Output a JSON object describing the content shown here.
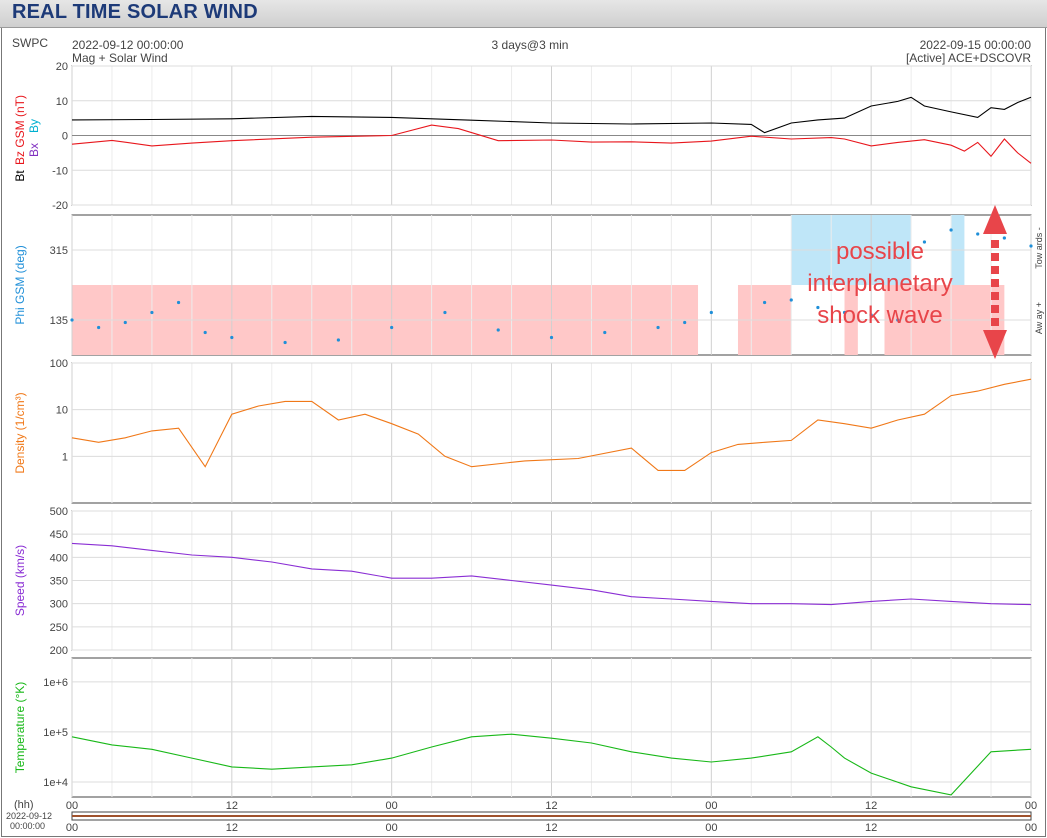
{
  "page": {
    "title": "REAL TIME SOLAR WIND",
    "agency": "SWPC",
    "start_time": "2022-09-12 00:00:00",
    "end_time": "2022-09-15 00:00:00",
    "span": "3 days@3 min",
    "source": "Mag + Solar Wind",
    "spacecraft": "[Active] ACE+DSCOVR"
  },
  "annotation": {
    "lines": [
      "possible",
      "interplanetary",
      "shock wave"
    ],
    "color": "#e8454a"
  },
  "colors": {
    "bt": "#000000",
    "bz": "#e8161c",
    "by": "#00b0d0",
    "bx": "#8030c0",
    "phi": "#1f8fd8",
    "away_fill": "#ffc8c8",
    "toward_fill": "#bfe6f8",
    "density": "#f07818",
    "speed": "#8a2ed4",
    "temperature": "#18b818"
  },
  "chart_data": [
    {
      "id": "mag",
      "type": "line",
      "ylabel_parts": [
        "Bt",
        "Bz GSM (nT)",
        "Bx",
        "By"
      ],
      "ylim": [
        -20,
        20
      ],
      "yticks": [
        -20,
        -10,
        0,
        10,
        20
      ],
      "grid": true,
      "x_unit": "hours since 2022-09-12 00:00",
      "series": [
        {
          "name": "Bt",
          "color": "#000000",
          "points": [
            [
              0,
              4.5
            ],
            [
              6,
              4.6
            ],
            [
              12,
              4.8
            ],
            [
              18,
              5.5
            ],
            [
              24,
              5.2
            ],
            [
              30,
              4.4
            ],
            [
              36,
              3.6
            ],
            [
              42,
              3.3
            ],
            [
              48,
              3.6
            ],
            [
              51,
              3.2
            ],
            [
              52,
              0.8
            ],
            [
              54,
              3.6
            ],
            [
              56,
              4.5
            ],
            [
              58,
              5.0
            ],
            [
              60,
              8.5
            ],
            [
              62,
              9.8
            ],
            [
              63,
              11
            ],
            [
              64,
              8.5
            ],
            [
              66,
              6.8
            ],
            [
              68,
              5.2
            ],
            [
              69,
              8.0
            ],
            [
              70,
              7.5
            ],
            [
              71,
              9.5
            ],
            [
              72,
              11
            ],
            [
              72.5,
              12.5
            ],
            [
              73,
              14.5
            ],
            [
              74,
              7
            ],
            [
              75,
              9
            ],
            [
              76,
              13
            ],
            [
              77,
              15
            ],
            [
              78,
              15.5
            ]
          ]
        },
        {
          "name": "Bz",
          "color": "#e8161c",
          "points": [
            [
              0,
              -2.5
            ],
            [
              3,
              -1.4
            ],
            [
              6,
              -3.0
            ],
            [
              9,
              -2.2
            ],
            [
              12,
              -1.5
            ],
            [
              18,
              -0.5
            ],
            [
              24,
              0
            ],
            [
              27,
              3.0
            ],
            [
              29,
              2.0
            ],
            [
              32,
              -1.5
            ],
            [
              36,
              -1.3
            ],
            [
              39,
              -1.9
            ],
            [
              42,
              -1.8
            ],
            [
              45,
              -2.2
            ],
            [
              48,
              -1.6
            ],
            [
              51,
              -0.2
            ],
            [
              54,
              -1.0
            ],
            [
              57,
              -0.6
            ],
            [
              58,
              -1.0
            ],
            [
              60,
              -3.0
            ],
            [
              62,
              -2.0
            ],
            [
              64,
              -1.2
            ],
            [
              66,
              -2.8
            ],
            [
              67,
              -4.5
            ],
            [
              68,
              -2.0
            ],
            [
              69,
              -6
            ],
            [
              70,
              -1
            ],
            [
              71,
              -5
            ],
            [
              72,
              -8
            ],
            [
              72.5,
              -3
            ],
            [
              73,
              -9
            ],
            [
              74,
              -7
            ],
            [
              75,
              -12
            ],
            [
              76,
              -14
            ],
            [
              77,
              6
            ],
            [
              78,
              4.5
            ]
          ]
        }
      ]
    },
    {
      "id": "phi",
      "type": "scatter",
      "ylabel": "Phi GSM (deg)",
      "ylim": [
        45,
        360
      ],
      "yticks": [
        135,
        315
      ],
      "sector_labels": [
        "Tow ards -",
        "Aw ay +"
      ],
      "grid": true,
      "series": [
        {
          "name": "Phi",
          "color": "#1f8fd8",
          "points": [
            [
              0,
              135
            ],
            [
              2,
              120
            ],
            [
              4,
              130
            ],
            [
              6,
              150
            ],
            [
              8,
              170
            ],
            [
              10,
              110
            ],
            [
              12,
              100
            ],
            [
              16,
              90
            ],
            [
              20,
              95
            ],
            [
              24,
              120
            ],
            [
              28,
              150
            ],
            [
              32,
              115
            ],
            [
              36,
              100
            ],
            [
              40,
              110
            ],
            [
              44,
              120
            ],
            [
              46,
              130
            ],
            [
              48,
              150
            ],
            [
              52,
              170
            ],
            [
              54,
              175
            ],
            [
              56,
              160
            ],
            [
              58,
              150
            ],
            [
              60,
              145
            ],
            [
              62,
              135
            ],
            [
              64,
              315
            ],
            [
              66,
              330
            ],
            [
              68,
              325
            ],
            [
              70,
              320
            ],
            [
              72,
              310
            ],
            [
              74,
              305
            ],
            [
              76,
              315
            ],
            [
              78,
              320
            ]
          ]
        }
      ],
      "away_sectors": [
        [
          0,
          47
        ],
        [
          50,
          54
        ],
        [
          58,
          59
        ],
        [
          61,
          70
        ],
        [
          72,
          79
        ]
      ],
      "toward_sectors": [
        [
          54,
          63
        ],
        [
          66,
          67
        ],
        [
          73,
          74
        ]
      ]
    },
    {
      "id": "density",
      "type": "line",
      "ylabel": "Density (1/cm³)",
      "yscale": "log",
      "ylim": [
        0.1,
        100
      ],
      "yticks": [
        1,
        10,
        100
      ],
      "grid": true,
      "series": [
        {
          "name": "Density",
          "color": "#f07818",
          "points": [
            [
              0,
              2.5
            ],
            [
              2,
              2.0
            ],
            [
              4,
              2.5
            ],
            [
              6,
              3.5
            ],
            [
              8,
              4.0
            ],
            [
              10,
              0.6
            ],
            [
              12,
              8.0
            ],
            [
              14,
              12
            ],
            [
              16,
              15
            ],
            [
              18,
              15
            ],
            [
              20,
              6
            ],
            [
              22,
              8
            ],
            [
              24,
              5
            ],
            [
              26,
              3
            ],
            [
              28,
              1.0
            ],
            [
              30,
              0.6
            ],
            [
              34,
              0.8
            ],
            [
              38,
              0.9
            ],
            [
              42,
              1.5
            ],
            [
              44,
              0.5
            ],
            [
              46,
              0.5
            ],
            [
              48,
              1.2
            ],
            [
              50,
              1.8
            ],
            [
              52,
              2.0
            ],
            [
              54,
              2.2
            ],
            [
              56,
              6.0
            ],
            [
              58,
              5.0
            ],
            [
              60,
              4.0
            ],
            [
              62,
              6.0
            ],
            [
              64,
              8.0
            ],
            [
              66,
              20
            ],
            [
              68,
              25
            ],
            [
              70,
              35
            ],
            [
              72,
              45
            ],
            [
              74,
              55
            ],
            [
              76,
              50
            ],
            [
              78,
              60
            ],
            [
              79,
              60
            ],
            [
              80,
              10
            ]
          ]
        }
      ]
    },
    {
      "id": "speed",
      "type": "line",
      "ylabel": "Speed (km/s)",
      "ylim": [
        200,
        500
      ],
      "yticks": [
        200,
        250,
        300,
        350,
        400,
        450,
        500
      ],
      "grid": true,
      "series": [
        {
          "name": "Speed",
          "color": "#8a2ed4",
          "points": [
            [
              0,
              430
            ],
            [
              3,
              425
            ],
            [
              6,
              415
            ],
            [
              9,
              405
            ],
            [
              12,
              400
            ],
            [
              15,
              390
            ],
            [
              18,
              375
            ],
            [
              21,
              370
            ],
            [
              24,
              355
            ],
            [
              27,
              355
            ],
            [
              30,
              360
            ],
            [
              33,
              350
            ],
            [
              36,
              340
            ],
            [
              39,
              330
            ],
            [
              42,
              315
            ],
            [
              45,
              310
            ],
            [
              48,
              305
            ],
            [
              51,
              300
            ],
            [
              54,
              300
            ],
            [
              57,
              298
            ],
            [
              60,
              305
            ],
            [
              63,
              310
            ],
            [
              66,
              305
            ],
            [
              69,
              300
            ],
            [
              72,
              298
            ],
            [
              75,
              305
            ],
            [
              78,
              330
            ],
            [
              80,
              340
            ]
          ]
        }
      ]
    },
    {
      "id": "temperature",
      "type": "line",
      "ylabel": "Temperature (°K)",
      "yscale": "log",
      "ylim": [
        5000,
        3000000
      ],
      "yticks": [
        10000,
        100000,
        1000000
      ],
      "ytick_labels": [
        "1e+4",
        "1e+5",
        "1e+6"
      ],
      "grid": true,
      "series": [
        {
          "name": "Temperature",
          "color": "#18b818",
          "points": [
            [
              0,
              80000
            ],
            [
              3,
              55000
            ],
            [
              6,
              45000
            ],
            [
              9,
              30000
            ],
            [
              12,
              20000
            ],
            [
              15,
              18000
            ],
            [
              18,
              20000
            ],
            [
              21,
              22000
            ],
            [
              24,
              30000
            ],
            [
              27,
              50000
            ],
            [
              30,
              80000
            ],
            [
              33,
              90000
            ],
            [
              36,
              75000
            ],
            [
              39,
              60000
            ],
            [
              42,
              40000
            ],
            [
              45,
              30000
            ],
            [
              48,
              25000
            ],
            [
              51,
              30000
            ],
            [
              54,
              40000
            ],
            [
              56,
              80000
            ],
            [
              57,
              50000
            ],
            [
              58,
              30000
            ],
            [
              60,
              15000
            ],
            [
              63,
              8000
            ],
            [
              66,
              5500
            ],
            [
              69,
              40000
            ],
            [
              72,
              45000
            ],
            [
              75,
              40000
            ],
            [
              78,
              30000
            ],
            [
              80,
              20000
            ]
          ]
        }
      ]
    },
    {
      "id": "time_axis",
      "type": "line",
      "xlabel": "(hh)",
      "x_date": "2022-09-12",
      "x_time": "00:00:00",
      "xlim": [
        0,
        72
      ],
      "xticks": [
        0,
        12,
        24,
        36,
        48,
        60,
        72
      ],
      "xtick_labels": [
        "00",
        "12",
        "00",
        "12",
        "00",
        "12",
        "00"
      ]
    }
  ]
}
